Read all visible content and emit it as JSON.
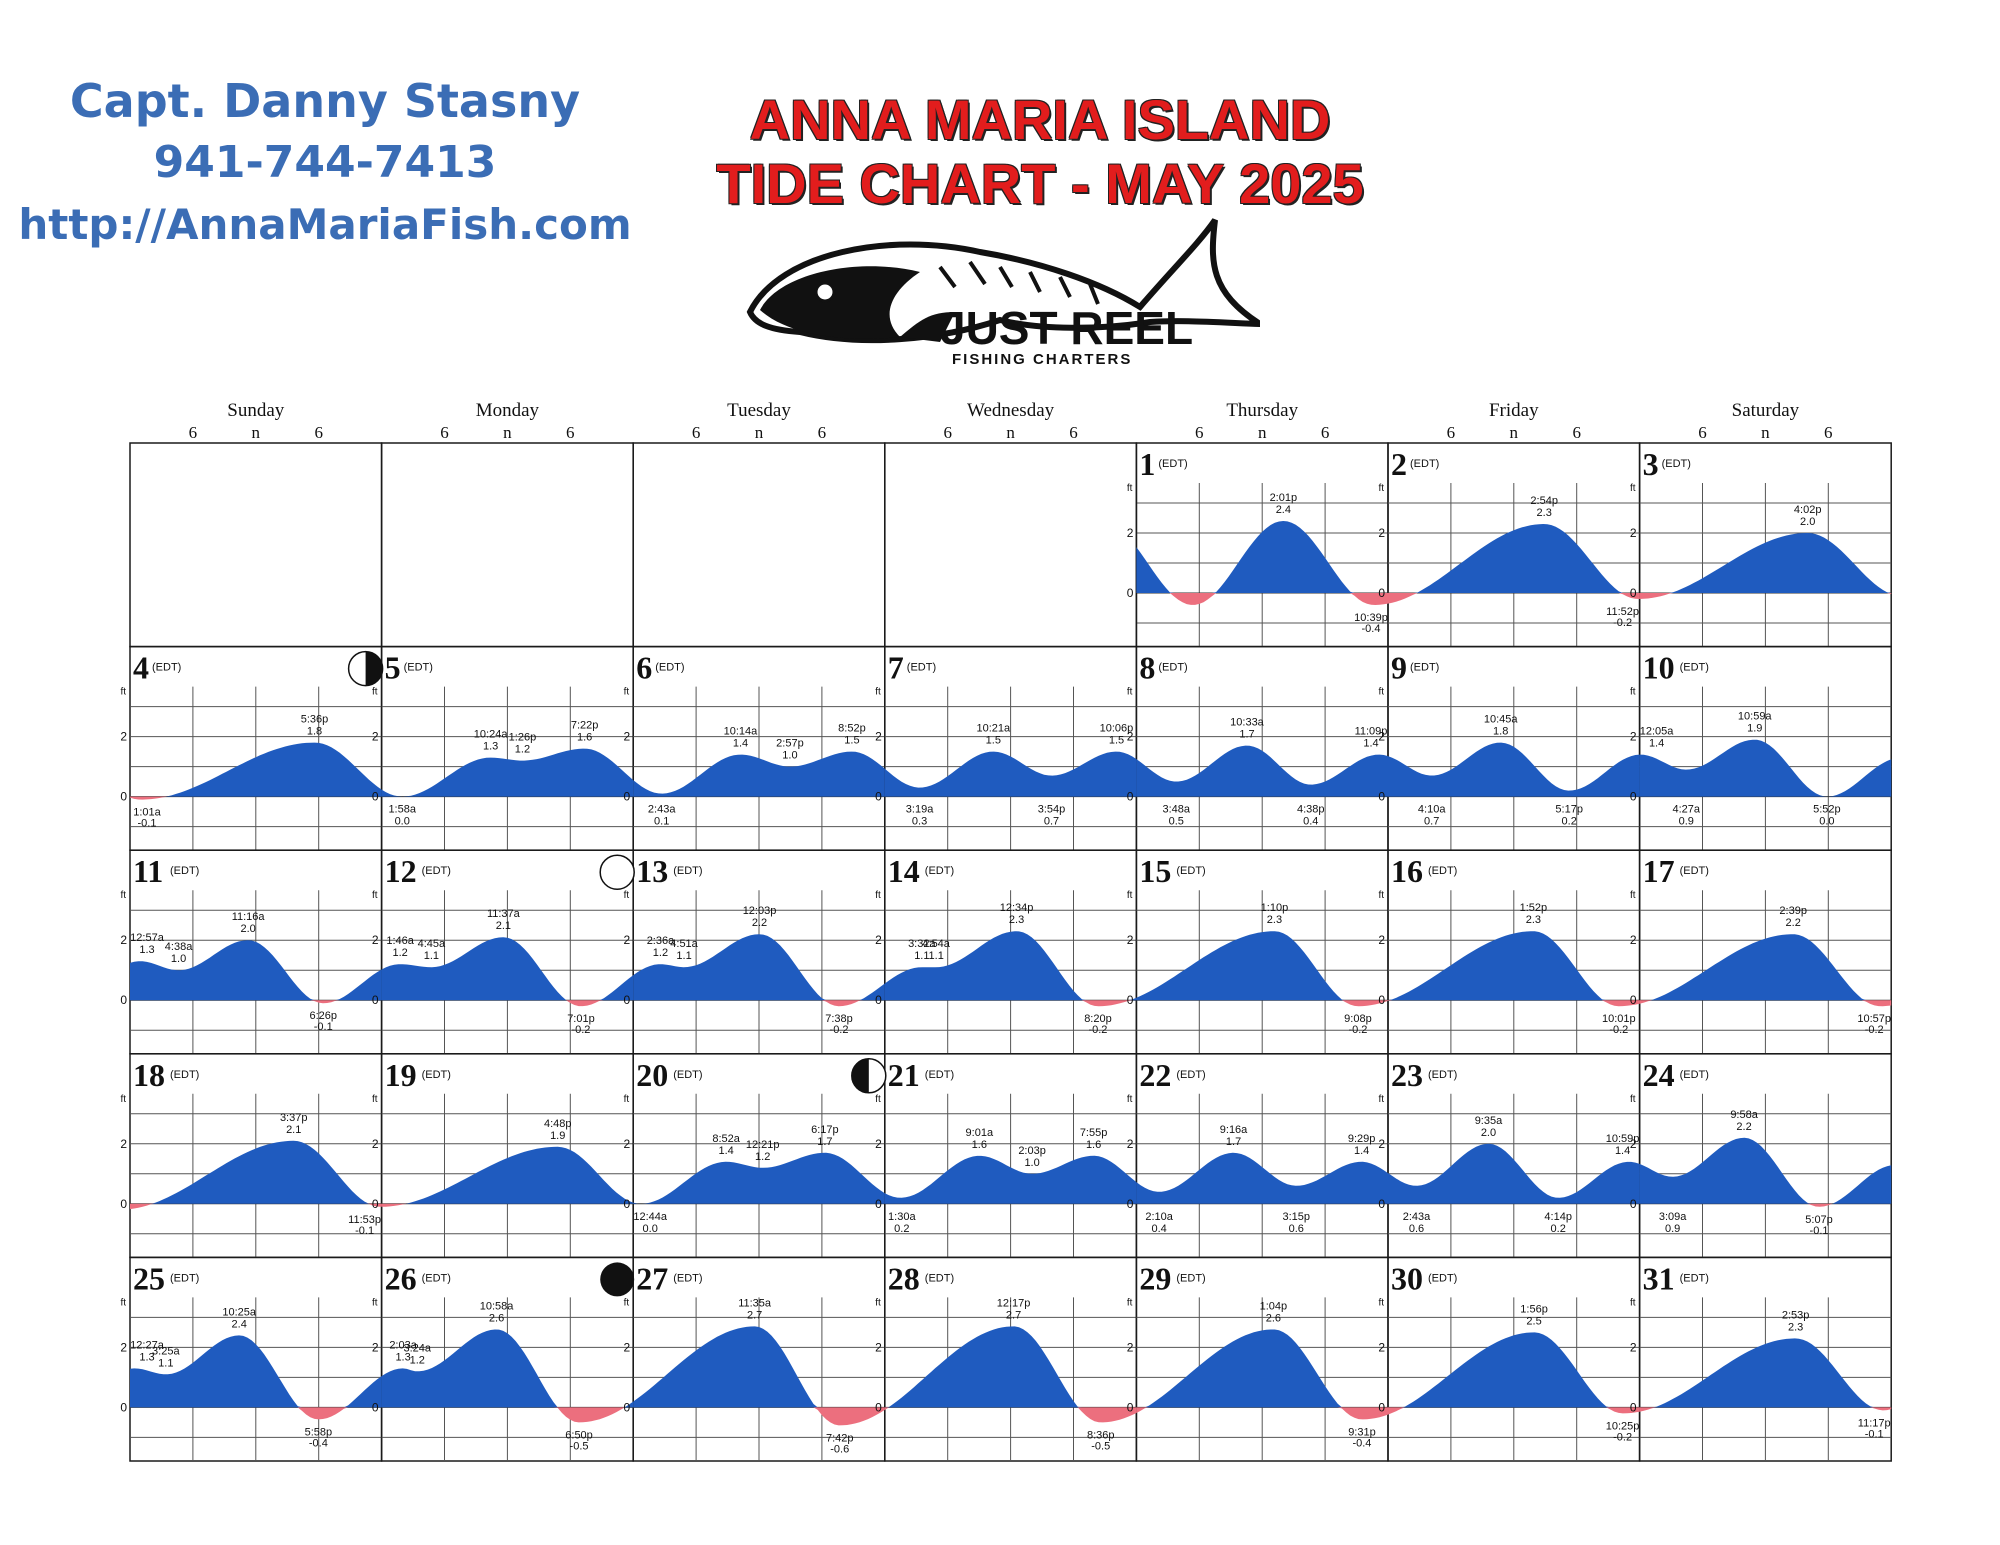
{
  "header": {
    "captain": "Capt. Danny Stasny",
    "phone": "941-744-7413",
    "website": "http://AnnaMariaFish.com",
    "title_line1": "ANNA MARIA ISLAND",
    "title_line2": "TIDE CHART - MAY 2025"
  },
  "logo": {
    "name": "JUST REEL",
    "tagline": "FISHING CHARTERS"
  },
  "calendar": {
    "weekdays": [
      "Sunday",
      "Monday",
      "Tuesday",
      "Wednesday",
      "Thursday",
      "Friday",
      "Saturday"
    ],
    "hour_ticks": [
      "6",
      "n",
      "6"
    ],
    "start_weekday": 4,
    "tz_label": "(EDT)",
    "axis_unit": "ft",
    "axis_ticks": [
      "2",
      "0"
    ],
    "colors": {
      "high": "#1f5bbf",
      "low": "#ec6f7e",
      "grid": "#1a1a1a",
      "text": "#111111"
    }
  },
  "chart_data": {
    "type": "area",
    "title": "ANNA MARIA ISLAND TIDE CHART - MAY 2025",
    "ylabel": "ft",
    "ylim": [
      -1,
      3
    ],
    "days": [
      {
        "day": 1,
        "tides": [
          {
            "t": "2:01p",
            "h": 2.4
          },
          {
            "t": "10:39p",
            "h": -0.4
          }
        ]
      },
      {
        "day": 2,
        "tides": [
          {
            "t": "2:54p",
            "h": 2.3
          },
          {
            "t": "11:52p",
            "h": -0.2
          }
        ]
      },
      {
        "day": 3,
        "tides": [
          {
            "t": "4:02p",
            "h": 2.0
          }
        ]
      },
      {
        "day": 4,
        "moon": "first-quarter",
        "tides": [
          {
            "t": "1:01a",
            "h": -0.1
          },
          {
            "t": "5:36p",
            "h": 1.8
          }
        ]
      },
      {
        "day": 5,
        "tides": [
          {
            "t": "1:58a",
            "h": 0.0
          },
          {
            "t": "10:24a",
            "h": 1.3
          },
          {
            "t": "1:26p",
            "h": 1.2
          },
          {
            "t": "7:22p",
            "h": 1.6
          }
        ]
      },
      {
        "day": 6,
        "tides": [
          {
            "t": "2:43a",
            "h": 0.1
          },
          {
            "t": "10:14a",
            "h": 1.4
          },
          {
            "t": "2:57p",
            "h": 1.0
          },
          {
            "t": "8:52p",
            "h": 1.5
          }
        ]
      },
      {
        "day": 7,
        "tides": [
          {
            "t": "3:19a",
            "h": 0.3
          },
          {
            "t": "10:21a",
            "h": 1.5
          },
          {
            "t": "3:54p",
            "h": 0.7
          },
          {
            "t": "10:06p",
            "h": 1.5
          }
        ]
      },
      {
        "day": 8,
        "tides": [
          {
            "t": "3:48a",
            "h": 0.5
          },
          {
            "t": "10:33a",
            "h": 1.7
          },
          {
            "t": "4:38p",
            "h": 0.4
          },
          {
            "t": "11:09p",
            "h": 1.4
          }
        ]
      },
      {
        "day": 9,
        "tides": [
          {
            "t": "4:10a",
            "h": 0.7
          },
          {
            "t": "10:45a",
            "h": 1.8
          },
          {
            "t": "5:17p",
            "h": 0.2
          }
        ]
      },
      {
        "day": 10,
        "tides": [
          {
            "t": "12:05a",
            "h": 1.4
          },
          {
            "t": "4:27a",
            "h": 0.9
          },
          {
            "t": "10:59a",
            "h": 1.9
          },
          {
            "t": "5:52p",
            "h": 0.0
          }
        ]
      },
      {
        "day": 11,
        "tides": [
          {
            "t": "12:57a",
            "h": 1.3
          },
          {
            "t": "4:38a",
            "h": 1.0
          },
          {
            "t": "11:16a",
            "h": 2.0
          },
          {
            "t": "6:26p",
            "h": -0.1
          }
        ]
      },
      {
        "day": 12,
        "moon": "full",
        "tides": [
          {
            "t": "1:46a",
            "h": 1.2
          },
          {
            "t": "4:45a",
            "h": 1.1
          },
          {
            "t": "11:37a",
            "h": 2.1
          },
          {
            "t": "7:01p",
            "h": -0.2
          }
        ]
      },
      {
        "day": 13,
        "tides": [
          {
            "t": "2:36a",
            "h": 1.2
          },
          {
            "t": "4:51a",
            "h": 1.1
          },
          {
            "t": "12:03p",
            "h": 2.2
          },
          {
            "t": "7:38p",
            "h": -0.2
          }
        ]
      },
      {
        "day": 14,
        "tides": [
          {
            "t": "3:32a",
            "h": 1.1
          },
          {
            "t": "4:54a",
            "h": 1.1
          },
          {
            "t": "12:34p",
            "h": 2.3
          },
          {
            "t": "8:20p",
            "h": -0.2
          }
        ]
      },
      {
        "day": 15,
        "tides": [
          {
            "t": "1:10p",
            "h": 2.3
          },
          {
            "t": "9:08p",
            "h": -0.2
          }
        ]
      },
      {
        "day": 16,
        "tides": [
          {
            "t": "1:52p",
            "h": 2.3
          },
          {
            "t": "10:01p",
            "h": -0.2
          }
        ]
      },
      {
        "day": 17,
        "tides": [
          {
            "t": "2:39p",
            "h": 2.2
          },
          {
            "t": "10:57p",
            "h": -0.2
          }
        ]
      },
      {
        "day": 18,
        "tides": [
          {
            "t": "3:37p",
            "h": 2.1
          },
          {
            "t": "11:53p",
            "h": -0.1
          }
        ]
      },
      {
        "day": 19,
        "tides": [
          {
            "t": "4:48p",
            "h": 1.9
          }
        ]
      },
      {
        "day": 20,
        "moon": "last-quarter",
        "tides": [
          {
            "t": "12:44a",
            "h": 0.0
          },
          {
            "t": "8:52a",
            "h": 1.4
          },
          {
            "t": "12:21p",
            "h": 1.2
          },
          {
            "t": "6:17p",
            "h": 1.7
          }
        ]
      },
      {
        "day": 21,
        "tides": [
          {
            "t": "1:30a",
            "h": 0.2
          },
          {
            "t": "9:01a",
            "h": 1.6
          },
          {
            "t": "2:03p",
            "h": 1.0
          },
          {
            "t": "7:55p",
            "h": 1.6
          }
        ]
      },
      {
        "day": 22,
        "tides": [
          {
            "t": "2:10a",
            "h": 0.4
          },
          {
            "t": "9:16a",
            "h": 1.7
          },
          {
            "t": "3:15p",
            "h": 0.6
          },
          {
            "t": "9:29p",
            "h": 1.4
          }
        ]
      },
      {
        "day": 23,
        "tides": [
          {
            "t": "2:43a",
            "h": 0.6
          },
          {
            "t": "9:35a",
            "h": 2.0
          },
          {
            "t": "4:14p",
            "h": 0.2
          },
          {
            "t": "10:59p",
            "h": 1.4
          }
        ]
      },
      {
        "day": 24,
        "tides": [
          {
            "t": "3:09a",
            "h": 0.9
          },
          {
            "t": "9:58a",
            "h": 2.2
          },
          {
            "t": "5:07p",
            "h": -0.1
          }
        ]
      },
      {
        "day": 25,
        "tides": [
          {
            "t": "12:27a",
            "h": 1.3
          },
          {
            "t": "3:25a",
            "h": 1.1
          },
          {
            "t": "10:25a",
            "h": 2.4
          },
          {
            "t": "5:58p",
            "h": -0.4
          }
        ]
      },
      {
        "day": 26,
        "moon": "new",
        "tides": [
          {
            "t": "2:03a",
            "h": 1.3
          },
          {
            "t": "3:24a",
            "h": 1.2
          },
          {
            "t": "10:58a",
            "h": 2.6
          },
          {
            "t": "6:50p",
            "h": -0.5
          }
        ]
      },
      {
        "day": 27,
        "tides": [
          {
            "t": "11:35a",
            "h": 2.7
          },
          {
            "t": "7:42p",
            "h": -0.6
          }
        ]
      },
      {
        "day": 28,
        "tides": [
          {
            "t": "12:17p",
            "h": 2.7
          },
          {
            "t": "8:36p",
            "h": -0.5
          }
        ]
      },
      {
        "day": 29,
        "tides": [
          {
            "t": "1:04p",
            "h": 2.6
          },
          {
            "t": "9:31p",
            "h": -0.4
          }
        ]
      },
      {
        "day": 30,
        "tides": [
          {
            "t": "1:56p",
            "h": 2.5
          },
          {
            "t": "10:25p",
            "h": -0.2
          }
        ]
      },
      {
        "day": 31,
        "tides": [
          {
            "t": "2:53p",
            "h": 2.3
          },
          {
            "t": "11:17p",
            "h": -0.1
          }
        ]
      }
    ]
  }
}
